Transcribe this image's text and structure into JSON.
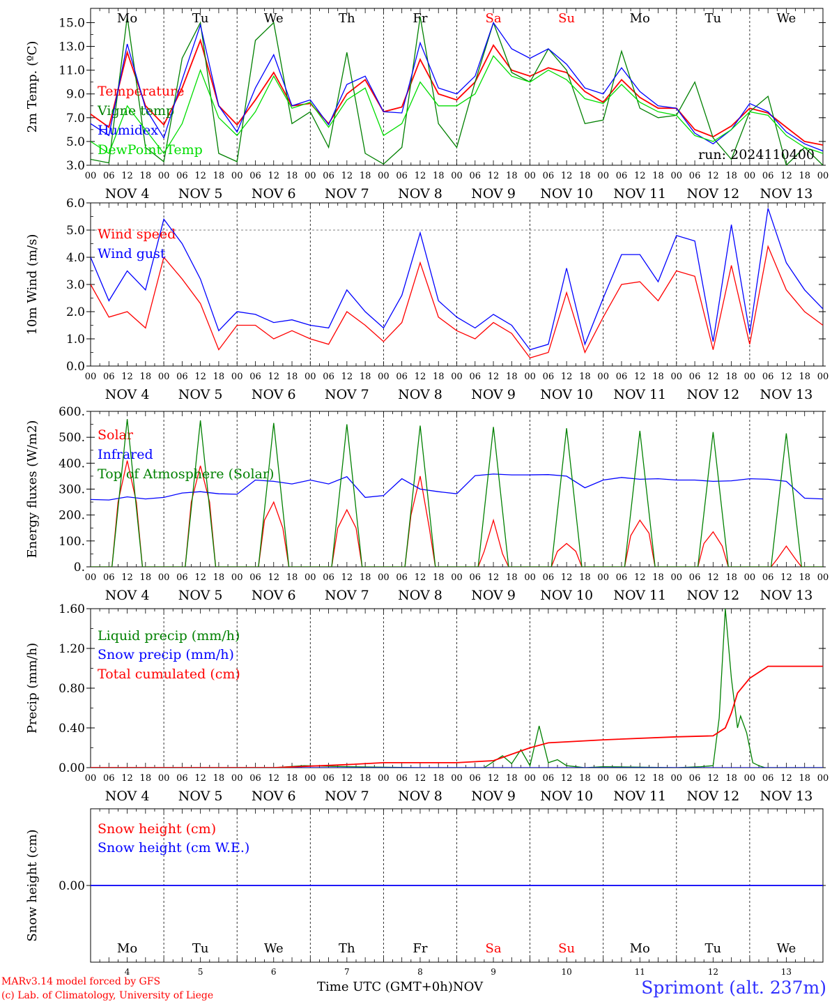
{
  "chart_data": [
    {
      "id": "temp",
      "type": "line",
      "ylabel": "2m Temp. (ºC)",
      "ylim": [
        3.0,
        16.2
      ],
      "yticks": [
        3.0,
        5.0,
        7.0,
        9.0,
        11.0,
        13.0,
        15.0
      ],
      "ytick_labels": [
        "3.0",
        "5.0",
        "7.0",
        "9.0",
        "11.0",
        "13.0",
        "15.0"
      ],
      "annotation": "run: 2024110400",
      "series": [
        {
          "name": "Temperature",
          "color": "#ff0000",
          "x": [
            0,
            6,
            12,
            18,
            24,
            30,
            36,
            42,
            48,
            54,
            60,
            66,
            72,
            78,
            84,
            90,
            96,
            102,
            108,
            114,
            120,
            126,
            132,
            138,
            144,
            150,
            156,
            162,
            168,
            174,
            180,
            186,
            192,
            198,
            204,
            210,
            216,
            222,
            228,
            234,
            240
          ],
          "values": [
            7.3,
            6.2,
            12.5,
            8.0,
            6.4,
            9.5,
            13.5,
            8.0,
            6.4,
            8.5,
            10.8,
            8.0,
            8.2,
            6.5,
            9.0,
            10.2,
            7.5,
            7.9,
            11.9,
            9.0,
            8.5,
            10.0,
            13.1,
            11.0,
            10.5,
            11.2,
            10.8,
            9.2,
            8.3,
            10.2,
            8.7,
            7.8,
            7.8,
            6.0,
            5.4,
            6.3,
            7.8,
            7.4,
            6.2,
            5.0,
            4.7
          ]
        },
        {
          "name": "Vigne temp",
          "color": "#008000",
          "x": [
            0,
            6,
            12,
            18,
            24,
            30,
            36,
            42,
            48,
            54,
            60,
            66,
            72,
            78,
            84,
            90,
            96,
            102,
            108,
            114,
            120,
            126,
            132,
            138,
            144,
            150,
            156,
            162,
            168,
            174,
            180,
            186,
            192,
            198,
            204,
            210,
            216,
            222,
            228,
            234,
            240
          ],
          "values": [
            3.5,
            3.2,
            15.5,
            4.5,
            3.3,
            12.0,
            15.0,
            4.0,
            3.3,
            13.5,
            15.0,
            6.5,
            7.5,
            4.5,
            12.5,
            4.0,
            3.1,
            4.5,
            15.5,
            6.5,
            4.5,
            10.0,
            15.0,
            10.8,
            10.0,
            12.8,
            11.0,
            6.5,
            6.8,
            12.6,
            7.8,
            7.0,
            7.2,
            10.0,
            5.3,
            3.5,
            7.5,
            8.8,
            3.0,
            4.5,
            3.0
          ]
        },
        {
          "name": "Humidex",
          "color": "#0000ff",
          "x": [
            0,
            6,
            12,
            18,
            24,
            30,
            36,
            42,
            48,
            54,
            60,
            66,
            72,
            78,
            84,
            90,
            96,
            102,
            108,
            114,
            120,
            126,
            132,
            138,
            144,
            150,
            156,
            162,
            168,
            174,
            180,
            186,
            192,
            198,
            204,
            210,
            216,
            222,
            228,
            234,
            240
          ],
          "values": [
            6.5,
            5.5,
            13.2,
            7.8,
            5.3,
            10.2,
            14.8,
            8.0,
            5.8,
            9.5,
            12.3,
            8.0,
            8.5,
            6.4,
            9.8,
            10.5,
            7.5,
            7.4,
            13.3,
            9.5,
            9.0,
            10.5,
            15.0,
            12.8,
            12.0,
            12.8,
            11.5,
            9.5,
            9.0,
            11.2,
            9.2,
            8.0,
            7.8,
            5.7,
            4.8,
            6.0,
            8.2,
            7.5,
            5.8,
            4.8,
            4.2
          ]
        },
        {
          "name": "DewPoint Temp",
          "color": "#00dd00",
          "x": [
            0,
            6,
            12,
            18,
            24,
            30,
            36,
            42,
            48,
            54,
            60,
            66,
            72,
            78,
            84,
            90,
            96,
            102,
            108,
            114,
            120,
            126,
            132,
            138,
            144,
            150,
            156,
            162,
            168,
            174,
            180,
            186,
            192,
            198,
            204,
            210,
            216,
            222,
            228,
            234,
            240
          ],
          "values": [
            5.0,
            4.0,
            8.0,
            6.0,
            4.0,
            6.5,
            11.0,
            7.0,
            5.5,
            7.5,
            10.5,
            7.8,
            8.3,
            6.2,
            8.5,
            9.5,
            5.5,
            6.5,
            10.0,
            8.0,
            8.0,
            9.0,
            12.2,
            10.5,
            10.0,
            11.0,
            10.2,
            8.6,
            8.2,
            9.8,
            8.3,
            7.5,
            7.2,
            5.5,
            5.0,
            6.0,
            7.5,
            7.2,
            5.5,
            4.5,
            4.0
          ]
        }
      ]
    },
    {
      "id": "wind",
      "type": "line",
      "ylabel": "10m Wind (m/s)",
      "ylim": [
        0.0,
        6.0
      ],
      "yticks": [
        0.0,
        1.0,
        2.0,
        3.0,
        4.0,
        5.0,
        6.0
      ],
      "ytick_labels": [
        "0.0",
        "1.0",
        "2.0",
        "3.0",
        "4.0",
        "5.0",
        "6.0"
      ],
      "ref_line": 5.0,
      "series": [
        {
          "name": "Wind speed",
          "color": "#ff0000",
          "x": [
            0,
            6,
            12,
            18,
            24,
            30,
            36,
            42,
            48,
            54,
            60,
            66,
            72,
            78,
            84,
            90,
            96,
            102,
            108,
            114,
            120,
            126,
            132,
            138,
            144,
            150,
            156,
            162,
            168,
            174,
            180,
            186,
            192,
            198,
            204,
            210,
            216,
            222,
            228,
            234,
            240
          ],
          "values": [
            3.0,
            1.8,
            2.0,
            1.4,
            4.0,
            3.2,
            2.3,
            0.6,
            1.5,
            1.5,
            1.0,
            1.3,
            1.0,
            0.8,
            2.0,
            1.5,
            0.9,
            1.6,
            3.8,
            1.8,
            1.3,
            1.0,
            1.6,
            1.2,
            0.3,
            0.5,
            2.7,
            0.5,
            1.8,
            3.0,
            3.1,
            2.4,
            3.5,
            3.3,
            0.6,
            3.7,
            0.8,
            4.4,
            2.8,
            2.0,
            1.5
          ]
        },
        {
          "name": "Wind gust",
          "color": "#0000ff",
          "x": [
            0,
            6,
            12,
            18,
            24,
            30,
            36,
            42,
            48,
            54,
            60,
            66,
            72,
            78,
            84,
            90,
            96,
            102,
            108,
            114,
            120,
            126,
            132,
            138,
            144,
            150,
            156,
            162,
            168,
            174,
            180,
            186,
            192,
            198,
            204,
            210,
            216,
            222,
            228,
            234,
            240
          ],
          "values": [
            4.0,
            2.4,
            3.5,
            2.8,
            5.4,
            4.5,
            3.2,
            1.3,
            2.0,
            1.9,
            1.6,
            1.7,
            1.5,
            1.4,
            2.8,
            2.0,
            1.4,
            2.6,
            4.9,
            2.4,
            1.8,
            1.4,
            1.9,
            1.5,
            0.6,
            0.8,
            3.6,
            0.8,
            2.5,
            4.1,
            4.1,
            3.1,
            4.8,
            4.6,
            0.9,
            5.2,
            1.2,
            5.8,
            3.8,
            2.8,
            2.1
          ]
        }
      ]
    },
    {
      "id": "energy",
      "type": "line",
      "ylabel": "Energy fluxes (W/m2)",
      "ylim": [
        0,
        600
      ],
      "yticks": [
        0,
        100,
        200,
        300,
        400,
        500,
        600
      ],
      "ytick_labels": [
        "0.",
        "100.",
        "200.",
        "300.",
        "400.",
        "500.",
        "600."
      ],
      "series": [
        {
          "name": "Solar",
          "color": "#ff0000",
          "x": [
            0,
            7,
            9,
            12,
            15,
            17,
            24,
            31,
            33,
            36,
            39,
            41,
            48,
            55,
            57,
            60,
            63,
            65,
            72,
            79,
            81,
            84,
            87,
            89,
            96,
            103,
            105,
            108,
            111,
            113,
            120,
            127,
            129,
            132,
            135,
            137,
            144,
            151,
            153,
            156,
            159,
            161,
            168,
            175,
            177,
            180,
            183,
            185,
            192,
            199,
            201,
            204,
            207,
            209,
            216,
            223,
            225,
            228,
            231,
            233,
            240
          ],
          "values": [
            0,
            0,
            250,
            410,
            250,
            0,
            0,
            0,
            250,
            390,
            250,
            0,
            0,
            0,
            180,
            250,
            150,
            0,
            0,
            0,
            150,
            220,
            150,
            0,
            0,
            0,
            200,
            350,
            150,
            0,
            0,
            0,
            60,
            180,
            50,
            0,
            0,
            0,
            60,
            90,
            60,
            0,
            0,
            0,
            120,
            180,
            130,
            0,
            0,
            0,
            90,
            135,
            80,
            0,
            0,
            0,
            30,
            80,
            30,
            0,
            0
          ]
        },
        {
          "name": "Infrared",
          "color": "#0000ff",
          "x": [
            0,
            6,
            12,
            18,
            24,
            30,
            36,
            42,
            48,
            54,
            60,
            66,
            72,
            78,
            84,
            90,
            96,
            102,
            108,
            114,
            120,
            126,
            132,
            138,
            144,
            150,
            156,
            162,
            168,
            174,
            180,
            186,
            192,
            198,
            204,
            210,
            216,
            222,
            228,
            234,
            240
          ],
          "values": [
            260,
            258,
            270,
            262,
            268,
            285,
            290,
            282,
            280,
            335,
            330,
            320,
            335,
            320,
            348,
            268,
            275,
            340,
            300,
            290,
            282,
            352,
            358,
            355,
            355,
            356,
            350,
            305,
            335,
            345,
            338,
            340,
            335,
            335,
            330,
            332,
            340,
            338,
            330,
            265,
            262
          ]
        },
        {
          "name": "Top of Atmosphere (Solar)",
          "color": "#008000",
          "x": [
            0,
            7,
            12,
            17,
            24,
            31,
            36,
            41,
            48,
            55,
            60,
            65,
            72,
            79,
            84,
            89,
            96,
            103,
            108,
            113,
            120,
            127,
            132,
            137,
            144,
            151,
            156,
            161,
            168,
            175,
            180,
            185,
            192,
            199,
            204,
            209,
            216,
            223,
            228,
            233,
            240
          ],
          "values": [
            0,
            0,
            570,
            0,
            0,
            0,
            565,
            0,
            0,
            0,
            555,
            0,
            0,
            0,
            550,
            0,
            0,
            0,
            545,
            0,
            0,
            0,
            540,
            0,
            0,
            0,
            535,
            0,
            0,
            0,
            525,
            0,
            0,
            0,
            520,
            0,
            0,
            0,
            515,
            0,
            0
          ]
        }
      ]
    },
    {
      "id": "precip",
      "type": "line",
      "ylabel": "Precip (mm/h)",
      "ylim": [
        0.0,
        1.6
      ],
      "yticks": [
        0.0,
        0.4,
        0.8,
        1.2,
        1.6
      ],
      "ytick_labels": [
        "0.00",
        "0.40",
        "0.80",
        "1.20",
        "1.60"
      ],
      "series": [
        {
          "name": "Liquid precip (mm/h)",
          "color": "#008000",
          "x": [
            0,
            60,
            70,
            84,
            108,
            129,
            135,
            138,
            141,
            144,
            147,
            150,
            153,
            156,
            162,
            168,
            192,
            200,
            204,
            206,
            208,
            210,
            212,
            213,
            215,
            217,
            219,
            221,
            222,
            224,
            226,
            240
          ],
          "values": [
            0,
            0,
            0.02,
            0.01,
            0,
            0,
            0.12,
            0.04,
            0.18,
            0.02,
            0.42,
            0.05,
            0.08,
            0.02,
            0,
            0.01,
            0,
            0.01,
            0.02,
            0.5,
            1.6,
            0.9,
            0.4,
            0.52,
            0.35,
            0.05,
            0.02,
            0,
            0,
            0,
            0,
            0
          ]
        },
        {
          "name": "Snow precip (mm/h)",
          "color": "#0000ff",
          "x": [
            0,
            240
          ],
          "values": [
            0,
            0
          ]
        },
        {
          "name": "Total cumulated (cm)",
          "color": "#ff0000",
          "x": [
            0,
            60,
            84,
            96,
            120,
            132,
            144,
            150,
            156,
            168,
            192,
            204,
            208,
            210,
            212,
            216,
            222,
            240
          ],
          "values": [
            0,
            0,
            0.03,
            0.05,
            0.05,
            0.07,
            0.2,
            0.25,
            0.26,
            0.28,
            0.31,
            0.32,
            0.4,
            0.55,
            0.75,
            0.9,
            1.02,
            1.02
          ]
        }
      ]
    },
    {
      "id": "snow",
      "type": "line",
      "ylabel": "Snow height (cm)",
      "ylim": [
        -1.0,
        1.0
      ],
      "yticks": [
        0.0
      ],
      "ytick_labels": [
        "0.00"
      ],
      "series": [
        {
          "name": "Snow height (cm)",
          "color": "#ff0000",
          "x": [
            0,
            240
          ],
          "values": [
            0,
            0
          ]
        },
        {
          "name": "Snow height (cm W.E.)",
          "color": "#0000ff",
          "x": [
            0,
            240
          ],
          "values": [
            0,
            0
          ]
        }
      ]
    }
  ],
  "days": {
    "labels": [
      "Mo",
      "Tu",
      "We",
      "Th",
      "Fr",
      "Sa",
      "Su",
      "Mo",
      "Tu",
      "We"
    ],
    "weekend_color": "#ff0000",
    "weekend": [
      false,
      false,
      false,
      false,
      false,
      true,
      true,
      false,
      false,
      false
    ],
    "dates": [
      "NOV  4",
      "NOV  5",
      "NOV  6",
      "NOV  7",
      "NOV  8",
      "NOV  9",
      "NOV 10",
      "NOV 11",
      "NOV 12",
      "NOV 13"
    ],
    "numbers": [
      "4",
      "5",
      "6",
      "7",
      "8",
      "9",
      "10",
      "11",
      "12",
      "13"
    ],
    "hour_labels": [
      "00",
      "06",
      "12",
      "18"
    ],
    "final_hour_label": "00"
  },
  "footer": {
    "credit_line1": "MARv3.14 model forced by GFS",
    "credit_line2": "(c) Lab. of Climatology, University of Liege",
    "x_axis_title": "Time UTC (GMT+0h)",
    "x_axis_unit": "NOV",
    "station": "Sprimont (alt. 237m)"
  }
}
